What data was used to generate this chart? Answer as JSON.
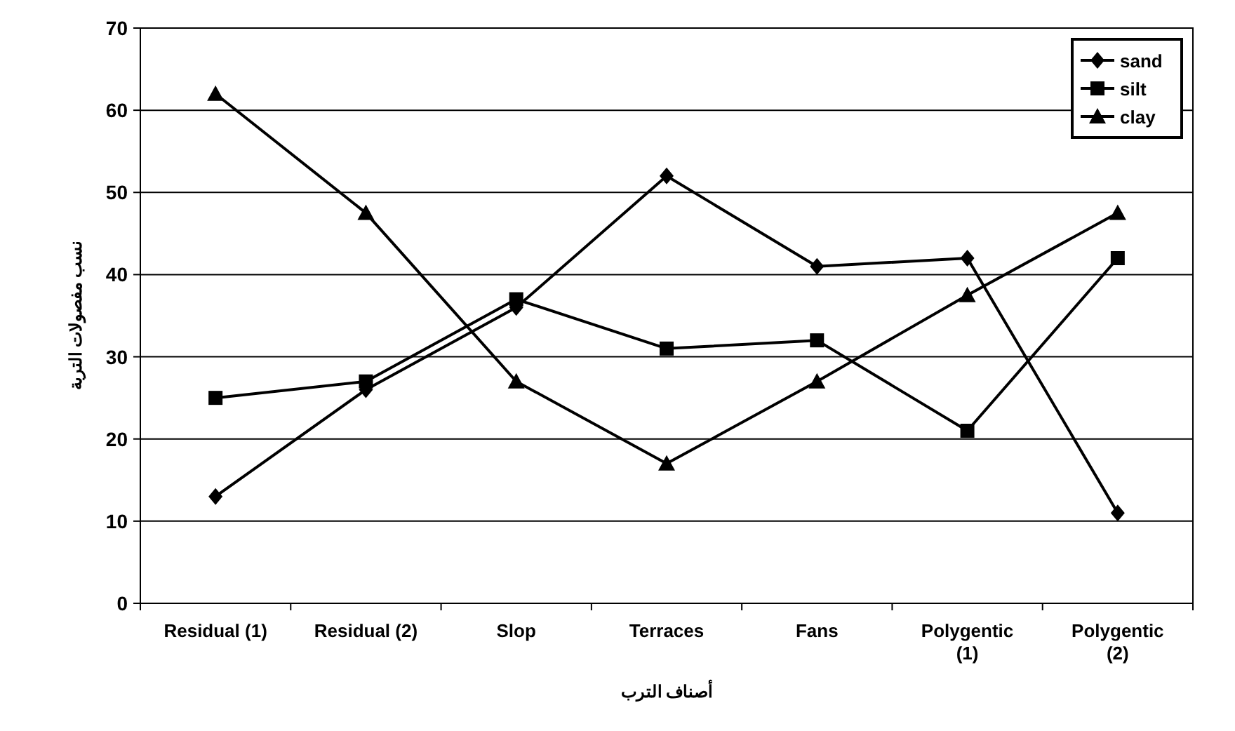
{
  "chart_data": {
    "type": "line",
    "xlabel": "أصناف الترب",
    "ylabel": "نسب مفصولات التربة",
    "categories": [
      "Residual (1)",
      "Residual (2)",
      "Slop",
      "Terraces",
      "Fans",
      "Polygentic (1)",
      "Polygentic (2)"
    ],
    "series": [
      {
        "name": "sand",
        "color": "#000000",
        "marker": "diamond",
        "values": [
          13,
          26,
          36,
          52,
          41,
          42,
          11
        ]
      },
      {
        "name": "silt",
        "color": "#000000",
        "marker": "square",
        "values": [
          25,
          27,
          37,
          31,
          32,
          21,
          42
        ]
      },
      {
        "name": "clay",
        "color": "#000000",
        "marker": "triangle",
        "values": [
          62,
          47.5,
          27,
          17,
          27,
          37.5,
          47.5
        ]
      }
    ],
    "ylim": [
      0,
      70
    ],
    "yticks": [
      0,
      10,
      20,
      30,
      40,
      50,
      60,
      70
    ],
    "grid": "y",
    "legend": "top right"
  }
}
